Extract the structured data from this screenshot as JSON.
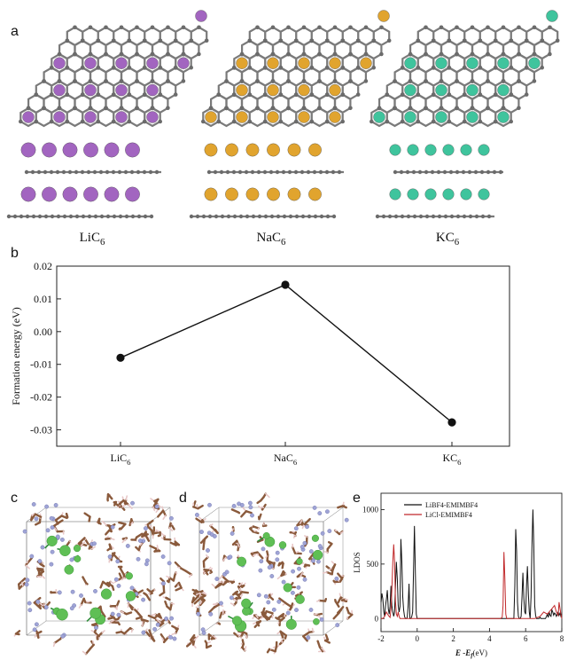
{
  "panels": {
    "a": {
      "label": "a"
    },
    "b": {
      "label": "b"
    },
    "c": {
      "label": "c"
    },
    "d": {
      "label": "d"
    },
    "e": {
      "label": "e"
    }
  },
  "materials": [
    {
      "main": "LiC",
      "sub": "6",
      "color": "#a265c0"
    },
    {
      "main": "NaC",
      "sub": "6",
      "color": "#e1a42e"
    },
    {
      "main": "KC",
      "sub": "6",
      "color": "#3fc49d"
    }
  ],
  "colors": {
    "carbon": "#7a7a7a",
    "cl_atom": "#5fbf55",
    "c_atom_md": "#8a5a3c",
    "n_atom_md": "#9fa4d6",
    "h_atom_md": "#e8c8c8"
  },
  "chart_data": [
    {
      "panel": "b",
      "type": "line",
      "categories": [
        {
          "main": "LiC",
          "sub": "6"
        },
        {
          "main": "NaC",
          "sub": "6"
        },
        {
          "main": "KC",
          "sub": "6"
        }
      ],
      "values": [
        -0.008,
        0.0143,
        -0.0277
      ],
      "ylabel": "Formation energy (eV)",
      "ylim": [
        -0.035,
        0.02
      ],
      "yticks": [
        0.02,
        0.01,
        0.0,
        -0.01,
        -0.02,
        -0.03
      ],
      "ytick_labels": [
        "0.02",
        "0.01",
        "0.00",
        "-0.01",
        "-0.02",
        "-0.03"
      ],
      "grid": false
    },
    {
      "panel": "e",
      "type": "line",
      "xlabel_main": "E",
      "xlabel_mid": " -E",
      "xlabel_sub": "f",
      "xlabel_unit": "(eV)",
      "ylabel": "LDOS",
      "xlim": [
        -2,
        8
      ],
      "ylim": [
        -120,
        1150
      ],
      "xticks": [
        -2,
        0,
        2,
        4,
        6,
        8
      ],
      "xtick_labels": [
        "-2",
        "0",
        "2",
        "4",
        "6",
        "8"
      ],
      "yticks": [
        0,
        500,
        1000
      ],
      "ytick_labels": [
        "0",
        "500",
        "1000"
      ],
      "legend_position": "top",
      "series": [
        {
          "name": "LiBF4-EMIMBF4",
          "color": "#111111",
          "x": [
            -2,
            -1.95,
            -1.9,
            -1.85,
            -1.8,
            -1.75,
            -1.7,
            -1.65,
            -1.6,
            -1.55,
            -1.5,
            -1.45,
            -1.4,
            -1.35,
            -1.3,
            -1.25,
            -1.2,
            -1.15,
            -1.1,
            -1.05,
            -1.0,
            -0.95,
            -0.9,
            -0.85,
            -0.8,
            -0.75,
            -0.7,
            -0.65,
            -0.6,
            -0.55,
            -0.5,
            -0.45,
            -0.4,
            -0.35,
            -0.3,
            -0.25,
            -0.2,
            -0.15,
            -0.1,
            -0.05,
            0,
            0.05,
            0.1,
            0.15,
            0.2,
            5.3,
            5.35,
            5.4,
            5.45,
            5.5,
            5.55,
            5.6,
            5.65,
            5.7,
            5.75,
            5.8,
            5.85,
            5.9,
            5.95,
            6.0,
            6.05,
            6.1,
            6.15,
            6.2,
            6.25,
            6.3,
            6.35,
            6.4,
            6.45,
            6.5,
            6.55,
            6.6,
            6.65,
            6.7,
            6.75,
            6.8,
            6.85,
            6.9,
            6.95,
            7.0,
            7.05,
            7.1,
            7.15,
            7.2,
            7.25,
            7.3,
            7.35,
            7.4,
            7.45,
            7.5,
            7.55,
            7.6,
            7.65,
            7.7,
            7.75,
            7.8,
            7.85,
            7.9,
            7.95,
            8.0
          ],
          "y": [
            150,
            230,
            180,
            60,
            20,
            120,
            180,
            260,
            90,
            40,
            110,
            300,
            120,
            60,
            20,
            60,
            300,
            520,
            360,
            120,
            60,
            110,
            730,
            520,
            200,
            80,
            20,
            0,
            0,
            10,
            120,
            320,
            0,
            0,
            20,
            60,
            450,
            850,
            400,
            40,
            0,
            0,
            0,
            0,
            0,
            0,
            0,
            300,
            820,
            620,
            150,
            20,
            0,
            0,
            20,
            200,
            420,
            180,
            60,
            40,
            300,
            480,
            220,
            60,
            0,
            200,
            650,
            1000,
            680,
            120,
            30,
            0,
            0,
            0,
            0,
            10,
            0,
            0,
            0,
            0,
            0,
            0,
            20,
            40,
            10,
            60,
            30,
            20,
            80,
            60,
            30,
            50,
            40,
            20,
            40,
            60,
            30,
            50,
            20,
            40
          ]
        },
        {
          "name": "LiCl-EMIMBF4",
          "color": "#c0282a",
          "x": [
            -2,
            -1.9,
            -1.8,
            -1.7,
            -1.6,
            -1.5,
            -1.45,
            -1.4,
            -1.35,
            -1.3,
            -1.25,
            -1.2,
            -1.15,
            -1.1,
            -1.05,
            -1.0,
            -0.95,
            -0.9,
            -0.8,
            -0.6,
            -0.4,
            -0.2,
            0,
            1,
            2,
            3,
            4,
            4.6,
            4.7,
            4.75,
            4.8,
            4.85,
            4.9,
            4.95,
            5.0,
            5.5,
            6.0,
            6.5,
            6.8,
            7.0,
            7.2,
            7.4,
            7.6,
            7.7,
            7.8,
            7.85,
            7.9,
            7.95,
            8.0
          ],
          "y": [
            0,
            0,
            20,
            60,
            30,
            10,
            80,
            260,
            520,
            680,
            520,
            160,
            40,
            20,
            60,
            20,
            0,
            0,
            0,
            0,
            0,
            0,
            0,
            0,
            0,
            0,
            0,
            0,
            10,
            120,
            610,
            380,
            40,
            0,
            0,
            0,
            0,
            0,
            20,
            60,
            40,
            80,
            120,
            60,
            30,
            150,
            90,
            40,
            0
          ]
        }
      ]
    }
  ]
}
